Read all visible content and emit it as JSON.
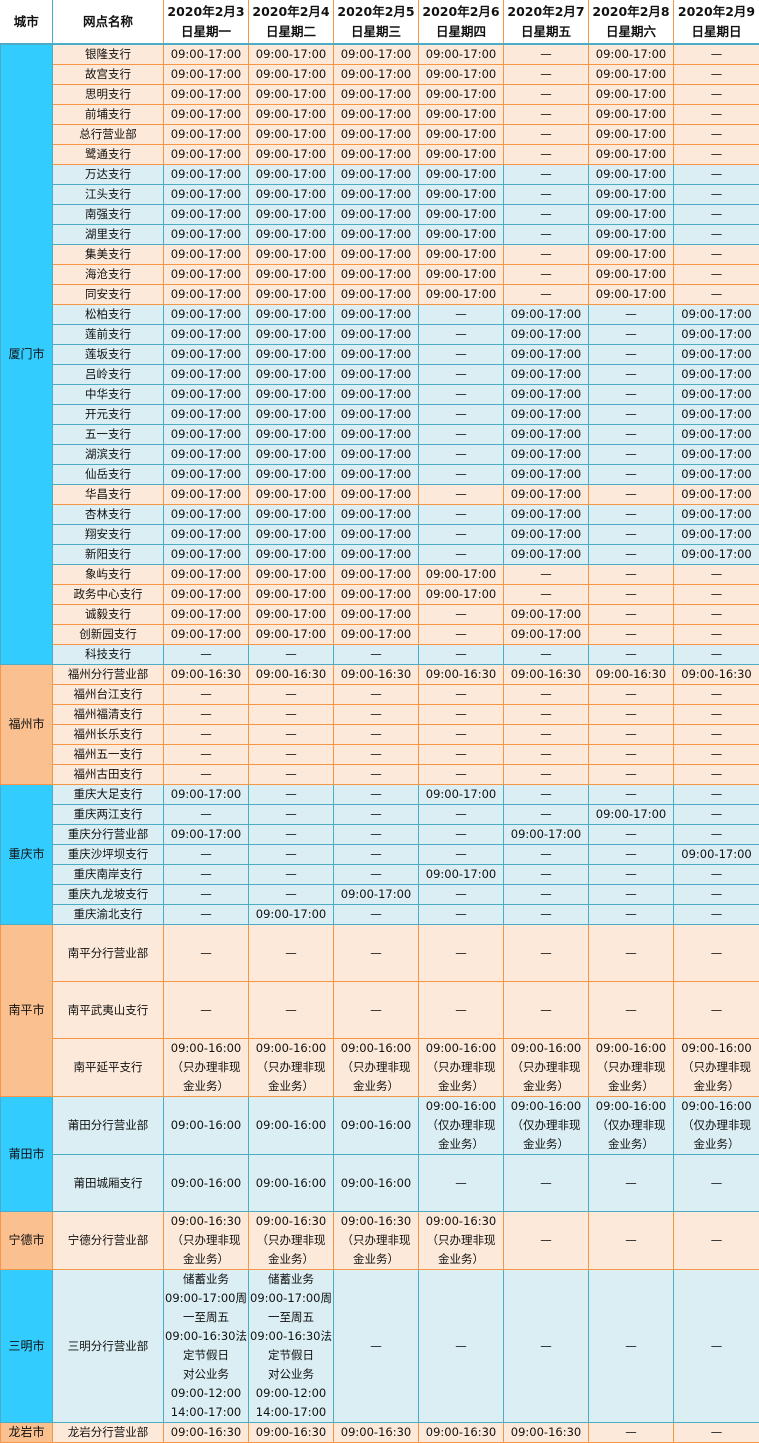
{
  "header": {
    "city": "城市",
    "branch": "网点名称",
    "dates": [
      "2020年2月3\n日星期一",
      "2020年2月4\n日星期二",
      "2020年2月5\n日星期三",
      "2020年2月6\n日星期四",
      "2020年2月7\n日星期五",
      "2020年2月8\n日星期六",
      "2020年2月9\n日星期日"
    ]
  },
  "colors": {
    "orange_row": "#fde9d9",
    "blue_row": "#daeef3",
    "blue_city": "#33ccff",
    "orange_city": "#fac090",
    "orange_border": "#f79646",
    "blue_border": "#4bacc6"
  },
  "cities": [
    {
      "name": "厦门市",
      "tone": "b",
      "rows": [
        {
          "name": "银隆支行",
          "tone": "o",
          "cells": [
            "09:00-17:00",
            "09:00-17:00",
            "09:00-17:00",
            "09:00-17:00",
            "—",
            "09:00-17:00",
            "—"
          ]
        },
        {
          "name": "故宫支行",
          "tone": "o",
          "cells": [
            "09:00-17:00",
            "09:00-17:00",
            "09:00-17:00",
            "09:00-17:00",
            "—",
            "09:00-17:00",
            "—"
          ]
        },
        {
          "name": "思明支行",
          "tone": "o",
          "cells": [
            "09:00-17:00",
            "09:00-17:00",
            "09:00-17:00",
            "09:00-17:00",
            "—",
            "09:00-17:00",
            "—"
          ]
        },
        {
          "name": "前埔支行",
          "tone": "o",
          "cells": [
            "09:00-17:00",
            "09:00-17:00",
            "09:00-17:00",
            "09:00-17:00",
            "—",
            "09:00-17:00",
            "—"
          ]
        },
        {
          "name": "总行营业部",
          "tone": "o",
          "cells": [
            "09:00-17:00",
            "09:00-17:00",
            "09:00-17:00",
            "09:00-17:00",
            "—",
            "09:00-17:00",
            "—"
          ]
        },
        {
          "name": "鹭通支行",
          "tone": "o",
          "cells": [
            "09:00-17:00",
            "09:00-17:00",
            "09:00-17:00",
            "09:00-17:00",
            "—",
            "09:00-17:00",
            "—"
          ]
        },
        {
          "name": "万达支行",
          "tone": "b",
          "cells": [
            "09:00-17:00",
            "09:00-17:00",
            "09:00-17:00",
            "09:00-17:00",
            "—",
            "09:00-17:00",
            "—"
          ]
        },
        {
          "name": "江头支行",
          "tone": "b",
          "cells": [
            "09:00-17:00",
            "09:00-17:00",
            "09:00-17:00",
            "09:00-17:00",
            "—",
            "09:00-17:00",
            "—"
          ]
        },
        {
          "name": "南强支行",
          "tone": "b",
          "cells": [
            "09:00-17:00",
            "09:00-17:00",
            "09:00-17:00",
            "09:00-17:00",
            "—",
            "09:00-17:00",
            "—"
          ]
        },
        {
          "name": "湖里支行",
          "tone": "b",
          "cells": [
            "09:00-17:00",
            "09:00-17:00",
            "09:00-17:00",
            "09:00-17:00",
            "—",
            "09:00-17:00",
            "—"
          ]
        },
        {
          "name": "集美支行",
          "tone": "o",
          "cells": [
            "09:00-17:00",
            "09:00-17:00",
            "09:00-17:00",
            "09:00-17:00",
            "—",
            "09:00-17:00",
            "—"
          ]
        },
        {
          "name": "海沧支行",
          "tone": "o",
          "cells": [
            "09:00-17:00",
            "09:00-17:00",
            "09:00-17:00",
            "09:00-17:00",
            "—",
            "09:00-17:00",
            "—"
          ]
        },
        {
          "name": "同安支行",
          "tone": "o",
          "cells": [
            "09:00-17:00",
            "09:00-17:00",
            "09:00-17:00",
            "09:00-17:00",
            "—",
            "09:00-17:00",
            "—"
          ]
        },
        {
          "name": "松柏支行",
          "tone": "b",
          "cells": [
            "09:00-17:00",
            "09:00-17:00",
            "09:00-17:00",
            "—",
            "09:00-17:00",
            "—",
            "09:00-17:00"
          ]
        },
        {
          "name": "莲前支行",
          "tone": "b",
          "cells": [
            "09:00-17:00",
            "09:00-17:00",
            "09:00-17:00",
            "—",
            "09:00-17:00",
            "—",
            "09:00-17:00"
          ]
        },
        {
          "name": "莲坂支行",
          "tone": "b",
          "cells": [
            "09:00-17:00",
            "09:00-17:00",
            "09:00-17:00",
            "—",
            "09:00-17:00",
            "—",
            "09:00-17:00"
          ]
        },
        {
          "name": "吕岭支行",
          "tone": "b",
          "cells": [
            "09:00-17:00",
            "09:00-17:00",
            "09:00-17:00",
            "—",
            "09:00-17:00",
            "—",
            "09:00-17:00"
          ]
        },
        {
          "name": "中华支行",
          "tone": "b",
          "cells": [
            "09:00-17:00",
            "09:00-17:00",
            "09:00-17:00",
            "—",
            "09:00-17:00",
            "—",
            "09:00-17:00"
          ]
        },
        {
          "name": "开元支行",
          "tone": "b",
          "cells": [
            "09:00-17:00",
            "09:00-17:00",
            "09:00-17:00",
            "—",
            "09:00-17:00",
            "—",
            "09:00-17:00"
          ]
        },
        {
          "name": "五一支行",
          "tone": "b",
          "cells": [
            "09:00-17:00",
            "09:00-17:00",
            "09:00-17:00",
            "—",
            "09:00-17:00",
            "—",
            "09:00-17:00"
          ]
        },
        {
          "name": "湖滨支行",
          "tone": "b",
          "cells": [
            "09:00-17:00",
            "09:00-17:00",
            "09:00-17:00",
            "—",
            "09:00-17:00",
            "—",
            "09:00-17:00"
          ]
        },
        {
          "name": "仙岳支行",
          "tone": "b",
          "cells": [
            "09:00-17:00",
            "09:00-17:00",
            "09:00-17:00",
            "—",
            "09:00-17:00",
            "—",
            "09:00-17:00"
          ]
        },
        {
          "name": "华昌支行",
          "tone": "o",
          "cells": [
            "09:00-17:00",
            "09:00-17:00",
            "09:00-17:00",
            "—",
            "09:00-17:00",
            "—",
            "09:00-17:00"
          ]
        },
        {
          "name": "杏林支行",
          "tone": "b",
          "cells": [
            "09:00-17:00",
            "09:00-17:00",
            "09:00-17:00",
            "—",
            "09:00-17:00",
            "—",
            "09:00-17:00"
          ]
        },
        {
          "name": "翔安支行",
          "tone": "b",
          "cells": [
            "09:00-17:00",
            "09:00-17:00",
            "09:00-17:00",
            "—",
            "09:00-17:00",
            "—",
            "09:00-17:00"
          ]
        },
        {
          "name": "新阳支行",
          "tone": "b",
          "cells": [
            "09:00-17:00",
            "09:00-17:00",
            "09:00-17:00",
            "—",
            "09:00-17:00",
            "—",
            "09:00-17:00"
          ]
        },
        {
          "name": "象屿支行",
          "tone": "o",
          "cells": [
            "09:00-17:00",
            "09:00-17:00",
            "09:00-17:00",
            "09:00-17:00",
            "—",
            "—",
            "—"
          ]
        },
        {
          "name": "政务中心支行",
          "tone": "o",
          "cells": [
            "09:00-17:00",
            "09:00-17:00",
            "09:00-17:00",
            "09:00-17:00",
            "—",
            "—",
            "—"
          ]
        },
        {
          "name": "诚毅支行",
          "tone": "o",
          "cells": [
            "09:00-17:00",
            "09:00-17:00",
            "09:00-17:00",
            "—",
            "09:00-17:00",
            "—",
            "—"
          ]
        },
        {
          "name": "创新园支行",
          "tone": "o",
          "cells": [
            "09:00-17:00",
            "09:00-17:00",
            "09:00-17:00",
            "—",
            "09:00-17:00",
            "—",
            "—"
          ]
        },
        {
          "name": "科技支行",
          "tone": "b",
          "cells": [
            "—",
            "—",
            "—",
            "—",
            "—",
            "—",
            "—"
          ]
        }
      ]
    },
    {
      "name": "福州市",
      "tone": "o",
      "rows": [
        {
          "name": "福州分行营业部",
          "tone": "o",
          "cells": [
            "09:00-16:30",
            "09:00-16:30",
            "09:00-16:30",
            "09:00-16:30",
            "09:00-16:30",
            "09:00-16:30",
            "09:00-16:30"
          ]
        },
        {
          "name": "福州台江支行",
          "tone": "o",
          "cells": [
            "—",
            "—",
            "—",
            "—",
            "—",
            "—",
            "—"
          ]
        },
        {
          "name": "福州福清支行",
          "tone": "o",
          "cells": [
            "—",
            "—",
            "—",
            "—",
            "—",
            "—",
            "—"
          ]
        },
        {
          "name": "福州长乐支行",
          "tone": "o",
          "cells": [
            "—",
            "—",
            "—",
            "—",
            "—",
            "—",
            "—"
          ]
        },
        {
          "name": "福州五一支行",
          "tone": "o",
          "cells": [
            "—",
            "—",
            "—",
            "—",
            "—",
            "—",
            "—"
          ]
        },
        {
          "name": "福州古田支行",
          "tone": "o",
          "cells": [
            "—",
            "—",
            "—",
            "—",
            "—",
            "—",
            "—"
          ]
        }
      ]
    },
    {
      "name": "重庆市",
      "tone": "b",
      "rows": [
        {
          "name": "重庆大足支行",
          "tone": "b",
          "cells": [
            "09:00-17:00",
            "—",
            "—",
            "09:00-17:00",
            "—",
            "—",
            "—"
          ]
        },
        {
          "name": "重庆两江支行",
          "tone": "b",
          "cells": [
            "—",
            "—",
            "—",
            "—",
            "—",
            "09:00-17:00",
            "—"
          ]
        },
        {
          "name": "重庆分行营业部",
          "tone": "b",
          "cells": [
            "09:00-17:00",
            "—",
            "—",
            "—",
            "09:00-17:00",
            "—",
            "—"
          ]
        },
        {
          "name": "重庆沙坪坝支行",
          "tone": "b",
          "cells": [
            "—",
            "—",
            "—",
            "—",
            "—",
            "—",
            "09:00-17:00"
          ]
        },
        {
          "name": "重庆南岸支行",
          "tone": "b",
          "cells": [
            "—",
            "—",
            "—",
            "09:00-17:00",
            "—",
            "—",
            "—"
          ]
        },
        {
          "name": "重庆九龙坡支行",
          "tone": "b",
          "cells": [
            "—",
            "—",
            "09:00-17:00",
            "—",
            "—",
            "—",
            "—"
          ]
        },
        {
          "name": "重庆渝北支行",
          "tone": "b",
          "cells": [
            "—",
            "09:00-17:00",
            "—",
            "—",
            "—",
            "—",
            "—"
          ]
        }
      ]
    },
    {
      "name": "南平市",
      "tone": "o",
      "rows": [
        {
          "name": "南平分行营业部",
          "tone": "o",
          "cells": [
            "—",
            "—",
            "—",
            "—",
            "—",
            "—",
            "—"
          ]
        },
        {
          "name": "南平武夷山支行",
          "tone": "o",
          "cells": [
            "—",
            "—",
            "—",
            "—",
            "—",
            "—",
            "—"
          ]
        },
        {
          "name": "南平延平支行",
          "tone": "o",
          "cells": [
            "09:00-16:00\n（只办理非现\n金业务）",
            "09:00-16:00\n（只办理非现\n金业务）",
            "09:00-16:00\n（只办理非现\n金业务）",
            "09:00-16:00\n（只办理非现\n金业务）",
            "09:00-16:00\n（只办理非现\n金业务）",
            "09:00-16:00\n（只办理非现\n金业务）",
            "09:00-16:00\n（只办理非现\n金业务）"
          ]
        }
      ]
    },
    {
      "name": "莆田市",
      "tone": "b",
      "rows": [
        {
          "name": "莆田分行营业部",
          "tone": "b",
          "cells": [
            "09:00-16:00",
            "09:00-16:00",
            "09:00-16:00",
            "09:00-16:00\n（仅办理非现\n金业务）",
            "09:00-16:00\n（仅办理非现\n金业务）",
            "09:00-16:00\n（仅办理非现\n金业务）",
            "09:00-16:00\n（仅办理非现\n金业务）"
          ]
        },
        {
          "name": "莆田城厢支行",
          "tone": "b",
          "cells": [
            "09:00-16:00",
            "09:00-16:00",
            "09:00-16:00",
            "—",
            "—",
            "—",
            "—"
          ]
        }
      ]
    },
    {
      "name": "宁德市",
      "tone": "o",
      "rows": [
        {
          "name": "宁德分行营业部",
          "tone": "o",
          "cells": [
            "09:00-16:30\n（只办理非现\n金业务）",
            "09:00-16:30\n（只办理非现\n金业务）",
            "09:00-16:30\n（只办理非现\n金业务）",
            "09:00-16:30\n（只办理非现\n金业务）",
            "—",
            "—",
            "—"
          ]
        }
      ]
    },
    {
      "name": "三明市",
      "tone": "b",
      "rows": [
        {
          "name": "三明分行营业部",
          "tone": "b",
          "cells": [
            "储蓄业务\n09:00-17:00周\n一至周五\n09:00-16:30法\n定节假日\n对公业务\n09:00-12:00\n14:00-17:00",
            "储蓄业务\n09:00-17:00周\n一至周五\n09:00-16:30法\n定节假日\n对公业务\n09:00-12:00\n14:00-17:00",
            "—",
            "—",
            "—",
            "—",
            "—"
          ]
        }
      ]
    },
    {
      "name": "龙岩市",
      "tone": "o",
      "rows": [
        {
          "name": "龙岩分行营业部",
          "tone": "o",
          "cells": [
            "09:00-16:30",
            "09:00-16:30",
            "09:00-16:30",
            "09:00-16:30",
            "09:00-16:30",
            "—",
            "—"
          ]
        }
      ]
    }
  ]
}
